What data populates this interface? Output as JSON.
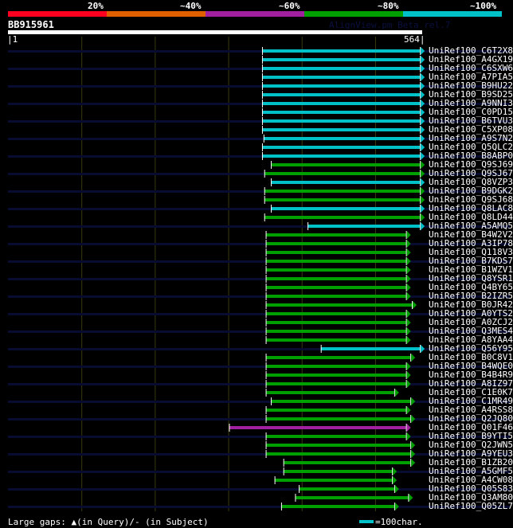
{
  "identity_scale": [
    {
      "label": "20%",
      "color": "#ff0020"
    },
    {
      "label": "~40%",
      "color": "#e06000"
    },
    {
      "label": "~60%",
      "color": "#a020a0"
    },
    {
      "label": "~80%",
      "color": "#00a000"
    },
    {
      "label": "~100%",
      "color": "#00c0c8"
    }
  ],
  "query": {
    "name": "BB915961",
    "start_label": "|1",
    "end_label": "564|",
    "length": 564
  },
  "watermark": "AlignView.pm Beta rel.7",
  "hits": [
    {
      "label": "UniRef100_C6T2X8",
      "start": 347,
      "end": 562,
      "color": "#00c0c8"
    },
    {
      "label": "UniRef100_A4GX19",
      "start": 347,
      "end": 562,
      "color": "#00c0c8"
    },
    {
      "label": "UniRef100_C6SXW6",
      "start": 347,
      "end": 562,
      "color": "#00c0c8"
    },
    {
      "label": "UniRef100_A7PIA5",
      "start": 347,
      "end": 562,
      "color": "#00c0c8"
    },
    {
      "label": "UniRef100_B9HU22",
      "start": 347,
      "end": 562,
      "color": "#00c0c8"
    },
    {
      "label": "UniRef100_B9SD25",
      "start": 347,
      "end": 562,
      "color": "#00c0c8"
    },
    {
      "label": "UniRef100_A9NNI3",
      "start": 347,
      "end": 562,
      "color": "#00c0c8"
    },
    {
      "label": "UniRef100_C0PD15",
      "start": 347,
      "end": 562,
      "color": "#00c0c8"
    },
    {
      "label": "UniRef100_B6TVU3",
      "start": 347,
      "end": 562,
      "color": "#00c0c8"
    },
    {
      "label": "UniRef100_C5XP08",
      "start": 347,
      "end": 562,
      "color": "#00c0c8"
    },
    {
      "label": "UniRef100_A9S7N2",
      "start": 349,
      "end": 562,
      "color": "#00c0c8"
    },
    {
      "label": "UniRef100_Q5QLC2",
      "start": 347,
      "end": 562,
      "color": "#00c0c8"
    },
    {
      "label": "UniRef100_B8ABP0",
      "start": 347,
      "end": 562,
      "color": "#00c0c8"
    },
    {
      "label": "UniRef100_Q9SJ69",
      "start": 359,
      "end": 562,
      "color": "#00a000"
    },
    {
      "label": "UniRef100_Q9SJ67",
      "start": 350,
      "end": 562,
      "color": "#00a000"
    },
    {
      "label": "UniRef100_Q8VZP3",
      "start": 359,
      "end": 562,
      "color": "#00c0c8"
    },
    {
      "label": "UniRef100_B9DGK2",
      "start": 350,
      "end": 562,
      "color": "#00a000"
    },
    {
      "label": "UniRef100_Q9SJ68",
      "start": 350,
      "end": 562,
      "color": "#00a000"
    },
    {
      "label": "UniRef100_Q8LAC8",
      "start": 359,
      "end": 562,
      "color": "#00c0c8"
    },
    {
      "label": "UniRef100_Q8LD44",
      "start": 350,
      "end": 562,
      "color": "#00a000"
    },
    {
      "label": "UniRef100_A5AMQ5",
      "start": 409,
      "end": 562,
      "color": "#00c0c8"
    },
    {
      "label": "UniRef100_B4W2V2",
      "start": 352,
      "end": 543,
      "color": "#00a000"
    },
    {
      "label": "UniRef100_A3IP78",
      "start": 352,
      "end": 543,
      "color": "#00a000"
    },
    {
      "label": "UniRef100_Q118V3",
      "start": 352,
      "end": 543,
      "color": "#00a000"
    },
    {
      "label": "UniRef100_B7KDS7",
      "start": 352,
      "end": 543,
      "color": "#00a000"
    },
    {
      "label": "UniRef100_B1WZV1",
      "start": 352,
      "end": 543,
      "color": "#00a000"
    },
    {
      "label": "UniRef100_Q8YSR1",
      "start": 352,
      "end": 543,
      "color": "#00a000"
    },
    {
      "label": "UniRef100_Q4BY65",
      "start": 352,
      "end": 543,
      "color": "#00a000"
    },
    {
      "label": "UniRef100_B2IZR5",
      "start": 352,
      "end": 543,
      "color": "#00a000"
    },
    {
      "label": "UniRef100_B0JR42",
      "start": 352,
      "end": 551,
      "color": "#00a000"
    },
    {
      "label": "UniRef100_A0YTS2",
      "start": 352,
      "end": 543,
      "color": "#00a000"
    },
    {
      "label": "UniRef100_A0ZCJ2",
      "start": 352,
      "end": 543,
      "color": "#00a000"
    },
    {
      "label": "UniRef100_Q3MES4",
      "start": 352,
      "end": 543,
      "color": "#00a000"
    },
    {
      "label": "UniRef100_A8YAA4",
      "start": 352,
      "end": 543,
      "color": "#00a000"
    },
    {
      "label": "UniRef100_Q56Y95",
      "start": 427,
      "end": 562,
      "color": "#00c0c8"
    },
    {
      "label": "UniRef100_B0C8V1",
      "start": 352,
      "end": 549,
      "color": "#00a000"
    },
    {
      "label": "UniRef100_B4WQE0",
      "start": 352,
      "end": 543,
      "color": "#00a000"
    },
    {
      "label": "UniRef100_B4B4R9",
      "start": 352,
      "end": 543,
      "color": "#00a000"
    },
    {
      "label": "UniRef100_A8IZ97",
      "start": 352,
      "end": 543,
      "color": "#00a000"
    },
    {
      "label": "UniRef100_C1E0K7",
      "start": 352,
      "end": 527,
      "color": "#00a000"
    },
    {
      "label": "UniRef100_C1MR49",
      "start": 359,
      "end": 549,
      "color": "#00a000"
    },
    {
      "label": "UniRef100_A4RSS8",
      "start": 352,
      "end": 543,
      "color": "#00a000"
    },
    {
      "label": "UniRef100_Q2JQ80",
      "start": 352,
      "end": 549,
      "color": "#00a000"
    },
    {
      "label": "UniRef100_Q01F46",
      "start": 302,
      "end": 543,
      "color": "#a020a0"
    },
    {
      "label": "UniRef100_B9YTI5",
      "start": 352,
      "end": 543,
      "color": "#00a000"
    },
    {
      "label": "UniRef100_Q2JWN5",
      "start": 352,
      "end": 549,
      "color": "#00a000"
    },
    {
      "label": "UniRef100_A9YEU3",
      "start": 352,
      "end": 549,
      "color": "#00a000"
    },
    {
      "label": "UniRef100_B1ZB20",
      "start": 376,
      "end": 549,
      "color": "#00a000"
    },
    {
      "label": "UniRef100_A5GMF5",
      "start": 376,
      "end": 524,
      "color": "#00a000"
    },
    {
      "label": "UniRef100_A4CW08",
      "start": 364,
      "end": 524,
      "color": "#00a000"
    },
    {
      "label": "UniRef100_Q05S83",
      "start": 397,
      "end": 527,
      "color": "#00a000"
    },
    {
      "label": "UniRef100_Q3AM80",
      "start": 392,
      "end": 546,
      "color": "#00a000"
    },
    {
      "label": "UniRef100_Q05ZL7",
      "start": 373,
      "end": 527,
      "color": "#00a000"
    }
  ],
  "footer": {
    "gaps_text": "Large gaps: ▲(in Query)/- (in Subject)",
    "scale_text": "=100char.",
    "scale_color": "#00c0c8"
  }
}
